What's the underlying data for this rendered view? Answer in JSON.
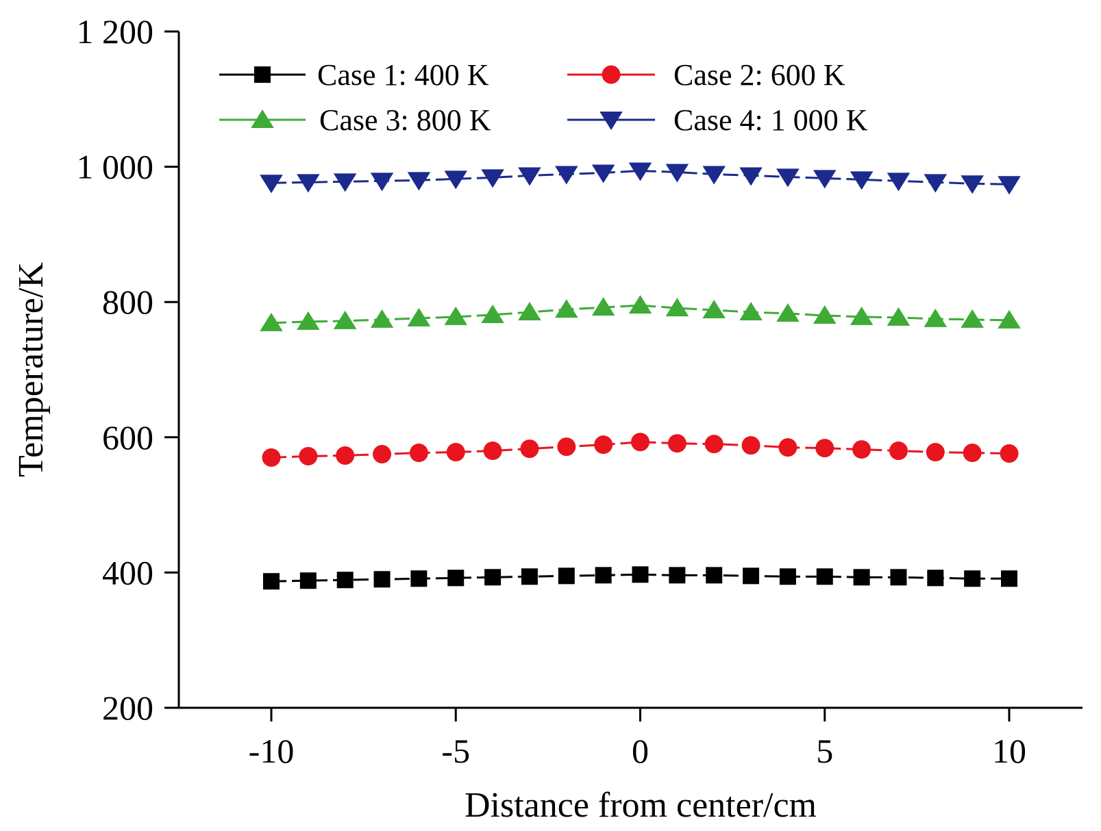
{
  "chart_data": {
    "type": "line",
    "title": "",
    "xlabel": "Distance from center/cm",
    "ylabel": "Temperature/K",
    "xlim": [
      -12.5,
      12.5
    ],
    "ylim": [
      200,
      1200
    ],
    "x_ticks": [
      -10,
      -5,
      0,
      5,
      10
    ],
    "x_tick_labels": [
      "-10",
      "-5",
      "0",
      "5",
      "10"
    ],
    "y_ticks": [
      200,
      400,
      600,
      800,
      1000,
      1200
    ],
    "y_tick_labels": [
      "200",
      "400",
      "600",
      "800",
      "1 000",
      "1 200"
    ],
    "grid": false,
    "legend_position": "top",
    "x": [
      -10,
      -9,
      -8,
      -7,
      -6,
      -5,
      -4,
      -3,
      -2,
      -1,
      0,
      1,
      2,
      3,
      4,
      5,
      6,
      7,
      8,
      9,
      10
    ],
    "series": [
      {
        "name": "Case 1: 400 K",
        "color": "#000000",
        "marker": "square",
        "values": [
          387,
          388,
          389,
          390,
          391,
          392,
          393,
          394,
          395,
          396,
          397,
          396,
          396,
          395,
          394,
          394,
          393,
          393,
          392,
          391,
          391
        ]
      },
      {
        "name": "Case 2: 600 K",
        "color": "#e8141e",
        "marker": "circle",
        "values": [
          570,
          572,
          573,
          575,
          577,
          578,
          580,
          583,
          586,
          589,
          593,
          591,
          590,
          588,
          585,
          584,
          582,
          580,
          578,
          577,
          576
        ]
      },
      {
        "name": "Case 3: 800 K",
        "color": "#3eab37",
        "marker": "triangle-up",
        "values": [
          769,
          771,
          772,
          774,
          776,
          778,
          781,
          785,
          789,
          792,
          795,
          791,
          788,
          785,
          783,
          780,
          778,
          777,
          775,
          774,
          773
        ]
      },
      {
        "name": "Case 4: 1 000 K",
        "color": "#1b2a8c",
        "marker": "triangle-down",
        "values": [
          976,
          977,
          978,
          979,
          980,
          982,
          984,
          987,
          989,
          991,
          994,
          992,
          989,
          987,
          985,
          983,
          981,
          979,
          977,
          975,
          974
        ]
      }
    ]
  }
}
